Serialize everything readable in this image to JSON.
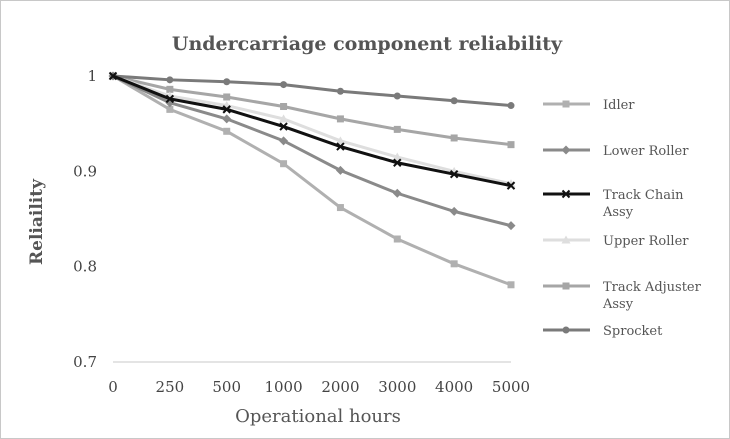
{
  "chart_data": {
    "type": "line",
    "title": "Undercarriage component reliability",
    "xlabel": "Operational hours",
    "ylabel": "Reliaility",
    "categories": [
      "0",
      "250",
      "500",
      "1000",
      "2000",
      "3000",
      "4000",
      "5000"
    ],
    "ylim": [
      0.7,
      1.0
    ],
    "yticks": [
      "0.7",
      "0.8",
      "0.9",
      "1"
    ],
    "ytick_values": [
      0.7,
      0.8,
      0.9,
      1.0
    ],
    "grid": false,
    "legend_position": "right",
    "series": [
      {
        "name": "Idler",
        "color": "#b0b0b0",
        "marker": "square",
        "values": [
          1.0,
          0.965,
          0.942,
          0.908,
          0.862,
          0.829,
          0.803,
          0.781
        ]
      },
      {
        "name": "Lower Roller",
        "color": "#8a8a8a",
        "marker": "diamond",
        "values": [
          1.0,
          0.972,
          0.955,
          0.932,
          0.901,
          0.877,
          0.858,
          0.843
        ]
      },
      {
        "name": "Track Chain Assy",
        "color": "#111111",
        "marker": "cross",
        "values": [
          1.0,
          0.976,
          0.965,
          0.947,
          0.926,
          0.909,
          0.897,
          0.885
        ]
      },
      {
        "name": "Upper Roller",
        "color": "#dedede",
        "marker": "triangle",
        "values": [
          1.0,
          0.979,
          0.969,
          0.955,
          0.932,
          0.915,
          0.9,
          0.887
        ]
      },
      {
        "name": "Track Adjuster Assy",
        "color": "#a6a6a6",
        "marker": "square",
        "values": [
          1.0,
          0.986,
          0.978,
          0.968,
          0.955,
          0.944,
          0.935,
          0.928
        ]
      },
      {
        "name": "Sprocket",
        "color": "#7a7a7a",
        "marker": "circle",
        "values": [
          1.0,
          0.996,
          0.994,
          0.991,
          0.984,
          0.979,
          0.974,
          0.969
        ]
      }
    ]
  }
}
